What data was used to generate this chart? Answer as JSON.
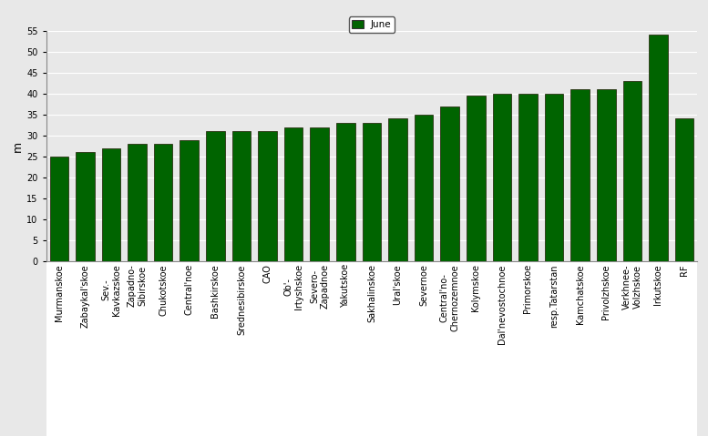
{
  "categories": [
    "Murmanskoe",
    "Zabaykal'skoe",
    "Sev.-\nKavkazskoe",
    "Zapadno-\nSibirskoe",
    "Chukotskoe",
    "Central'noe",
    "Bashkirskoe",
    "Srednesibirskoe",
    "CAO",
    "Ob'-\nIrtyshskoe",
    "Severo-\nZapadnoe",
    "Yakutskoe",
    "Sakhalinskoe",
    "Ural'skoe",
    "Severnoe",
    "Central'no-\nChernozemnoe",
    "Kolymskoe",
    "Dal'nevostochnoe",
    "Primorskoe",
    "resp.Tatarstan",
    "Kamchatskoe",
    "Privolzhskoe",
    "Verkhnee-\nVolzhskoe",
    "Irkutskoe",
    "RF"
  ],
  "values": [
    25.0,
    26.0,
    27.0,
    28.0,
    28.0,
    29.0,
    31.0,
    31.0,
    31.0,
    32.0,
    32.0,
    33.0,
    33.0,
    34.0,
    35.0,
    37.0,
    39.5,
    40.0,
    40.0,
    40.0,
    41.0,
    41.0,
    43.0,
    54.0,
    34.0
  ],
  "bar_color": "#006400",
  "bar_edge_color": "#1a1a00",
  "ylabel": "m",
  "ylim": [
    0,
    55
  ],
  "yticks": [
    0,
    5,
    10,
    15,
    20,
    25,
    30,
    35,
    40,
    45,
    50,
    55
  ],
  "legend_label": "June",
  "legend_color": "#006400",
  "figure_bg": "#e8e8e8",
  "axes_bg": "#e8e8e8",
  "below_axes_bg": "#ffffff",
  "grid_color": "#ffffff",
  "tick_fontsize": 7.0,
  "ylabel_fontsize": 9
}
